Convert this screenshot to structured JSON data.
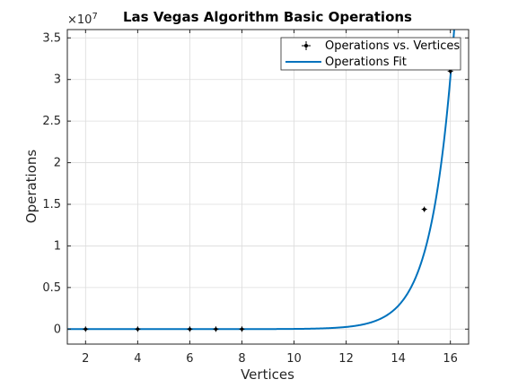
{
  "chart_data": {
    "type": "line",
    "title": "Las Vegas Algorithm Basic Operations",
    "xlabel": "Vertices",
    "ylabel": "Operations",
    "xlim": [
      1.3,
      16.7
    ],
    "ylim": [
      -1800000,
      36000000
    ],
    "xticks": [
      2,
      4,
      6,
      8,
      10,
      12,
      14,
      16
    ],
    "xtick_labels": [
      "2",
      "4",
      "6",
      "8",
      "10",
      "12",
      "14",
      "16"
    ],
    "yticks": [
      0,
      5000000,
      10000000,
      15000000,
      20000000,
      25000000,
      30000000,
      35000000
    ],
    "ytick_labels": [
      "0",
      "0.5",
      "1",
      "1.5",
      "2",
      "2.5",
      "3",
      "3.5"
    ],
    "y_exponent_label": "×10",
    "y_exponent_power": "7",
    "grid": true,
    "legend_position": "top-right",
    "series": [
      {
        "name": "Operations vs. Vertices",
        "kind": "markers",
        "color": "#000000",
        "x": [
          2,
          4,
          6,
          7,
          8,
          15,
          16
        ],
        "y": [
          0,
          0,
          0,
          0,
          0,
          14400000,
          31000000
        ]
      },
      {
        "name": "Operations Fit",
        "kind": "line",
        "color": "#0072BD",
        "fit": {
          "form": "a*exp(b*x)",
          "a": 0.163,
          "b": 1.19
        }
      }
    ]
  }
}
